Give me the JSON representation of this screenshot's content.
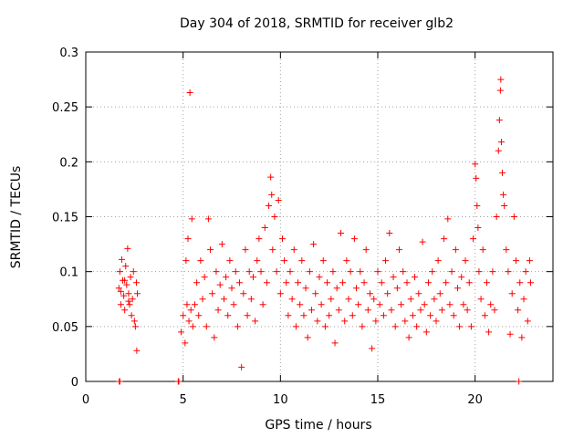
{
  "chart_data": {
    "type": "scatter",
    "title": "Day 304 of 2018, SRMTID for receiver glb2",
    "xlabel": "GPS time / hours",
    "ylabel": "SRMTID / TECUs",
    "xlim": [
      0,
      24
    ],
    "ylim": [
      0,
      0.3
    ],
    "grid": true,
    "marker": "+",
    "x_ticks": [
      0,
      5,
      10,
      15,
      20
    ],
    "x_tick_labels": [
      "0",
      "5",
      "10",
      "15",
      "20"
    ],
    "y_ticks": [
      0,
      0.05,
      0.1,
      0.15,
      0.2,
      0.25,
      0.3
    ],
    "y_tick_labels": [
      "0",
      "0.05",
      "0.1",
      "0.15",
      "0.2",
      "0.25",
      "0.3"
    ],
    "colors": {
      "series": "#ff0000",
      "grid": "#a0a0a0",
      "axis": "#000000"
    },
    "series": [
      {
        "name": "SRMTID",
        "points": [
          [
            1.72,
            0.0
          ],
          [
            1.75,
            0.0
          ],
          [
            4.75,
            0.0
          ],
          [
            4.78,
            0.0
          ],
          [
            22.25,
            0.0
          ],
          [
            1.7,
            0.085
          ],
          [
            1.75,
            0.1
          ],
          [
            1.8,
            0.07
          ],
          [
            1.85,
            0.111
          ],
          [
            1.9,
            0.092
          ],
          [
            1.95,
            0.078
          ],
          [
            2.0,
            0.065
          ],
          [
            2.05,
            0.105
          ],
          [
            2.1,
            0.088
          ],
          [
            2.15,
            0.121
          ],
          [
            2.2,
            0.08
          ],
          [
            2.25,
            0.07
          ],
          [
            2.3,
            0.095
          ],
          [
            2.35,
            0.06
          ],
          [
            2.4,
            0.075
          ],
          [
            2.45,
            0.1
          ],
          [
            2.5,
            0.055
          ],
          [
            2.55,
            0.05
          ],
          [
            2.6,
            0.09
          ],
          [
            2.62,
            0.028
          ],
          [
            2.65,
            0.08
          ],
          [
            1.8,
            0.082
          ],
          [
            2.0,
            0.092
          ],
          [
            2.2,
            0.073
          ],
          [
            4.9,
            0.045
          ],
          [
            5.0,
            0.06
          ],
          [
            5.1,
            0.035
          ],
          [
            5.15,
            0.11
          ],
          [
            5.2,
            0.07
          ],
          [
            5.25,
            0.13
          ],
          [
            5.3,
            0.055
          ],
          [
            5.35,
            0.263
          ],
          [
            5.4,
            0.065
          ],
          [
            5.45,
            0.148
          ],
          [
            5.5,
            0.05
          ],
          [
            5.6,
            0.07
          ],
          [
            5.7,
            0.09
          ],
          [
            5.8,
            0.06
          ],
          [
            5.9,
            0.11
          ],
          [
            6.0,
            0.075
          ],
          [
            6.1,
            0.095
          ],
          [
            6.2,
            0.05
          ],
          [
            6.3,
            0.148
          ],
          [
            6.4,
            0.12
          ],
          [
            6.5,
            0.08
          ],
          [
            6.6,
            0.04
          ],
          [
            6.7,
            0.1
          ],
          [
            6.8,
            0.065
          ],
          [
            6.9,
            0.088
          ],
          [
            7.0,
            0.125
          ],
          [
            7.1,
            0.075
          ],
          [
            7.2,
            0.095
          ],
          [
            7.3,
            0.06
          ],
          [
            7.4,
            0.11
          ],
          [
            7.5,
            0.085
          ],
          [
            7.6,
            0.07
          ],
          [
            7.7,
            0.1
          ],
          [
            7.8,
            0.05
          ],
          [
            7.9,
            0.09
          ],
          [
            8.0,
            0.013
          ],
          [
            8.1,
            0.08
          ],
          [
            8.2,
            0.12
          ],
          [
            8.3,
            0.06
          ],
          [
            8.4,
            0.1
          ],
          [
            8.5,
            0.075
          ],
          [
            8.6,
            0.095
          ],
          [
            8.7,
            0.055
          ],
          [
            8.8,
            0.11
          ],
          [
            8.9,
            0.13
          ],
          [
            9.0,
            0.1
          ],
          [
            9.1,
            0.07
          ],
          [
            9.2,
            0.14
          ],
          [
            9.3,
            0.09
          ],
          [
            9.4,
            0.16
          ],
          [
            9.5,
            0.186
          ],
          [
            9.55,
            0.17
          ],
          [
            9.6,
            0.12
          ],
          [
            9.7,
            0.15
          ],
          [
            9.8,
            0.1
          ],
          [
            9.9,
            0.165
          ],
          [
            10.0,
            0.08
          ],
          [
            10.1,
            0.13
          ],
          [
            10.2,
            0.11
          ],
          [
            10.3,
            0.09
          ],
          [
            10.4,
            0.06
          ],
          [
            10.5,
            0.1
          ],
          [
            10.6,
            0.075
          ],
          [
            10.7,
            0.12
          ],
          [
            10.8,
            0.05
          ],
          [
            10.9,
            0.09
          ],
          [
            11.0,
            0.07
          ],
          [
            11.1,
            0.11
          ],
          [
            11.2,
            0.06
          ],
          [
            11.3,
            0.085
          ],
          [
            11.4,
            0.04
          ],
          [
            11.5,
            0.1
          ],
          [
            11.6,
            0.065
          ],
          [
            11.7,
            0.125
          ],
          [
            11.8,
            0.08
          ],
          [
            11.9,
            0.055
          ],
          [
            12.0,
            0.095
          ],
          [
            12.1,
            0.07
          ],
          [
            12.2,
            0.11
          ],
          [
            12.3,
            0.05
          ],
          [
            12.4,
            0.09
          ],
          [
            12.5,
            0.06
          ],
          [
            12.6,
            0.075
          ],
          [
            12.7,
            0.1
          ],
          [
            12.8,
            0.035
          ],
          [
            12.9,
            0.085
          ],
          [
            13.0,
            0.065
          ],
          [
            13.1,
            0.135
          ],
          [
            13.2,
            0.09
          ],
          [
            13.3,
            0.055
          ],
          [
            13.4,
            0.11
          ],
          [
            13.5,
            0.075
          ],
          [
            13.6,
            0.1
          ],
          [
            13.7,
            0.06
          ],
          [
            13.8,
            0.13
          ],
          [
            13.9,
            0.085
          ],
          [
            14.0,
            0.07
          ],
          [
            14.1,
            0.1
          ],
          [
            14.2,
            0.05
          ],
          [
            14.3,
            0.09
          ],
          [
            14.4,
            0.12
          ],
          [
            14.5,
            0.065
          ],
          [
            14.6,
            0.08
          ],
          [
            14.7,
            0.03
          ],
          [
            14.8,
            0.075
          ],
          [
            14.9,
            0.055
          ],
          [
            15.0,
            0.1
          ],
          [
            15.1,
            0.07
          ],
          [
            15.2,
            0.09
          ],
          [
            15.3,
            0.06
          ],
          [
            15.4,
            0.11
          ],
          [
            15.5,
            0.08
          ],
          [
            15.6,
            0.135
          ],
          [
            15.7,
            0.065
          ],
          [
            15.8,
            0.095
          ],
          [
            15.9,
            0.05
          ],
          [
            16.0,
            0.085
          ],
          [
            16.1,
            0.12
          ],
          [
            16.2,
            0.07
          ],
          [
            16.3,
            0.1
          ],
          [
            16.4,
            0.055
          ],
          [
            16.5,
            0.09
          ],
          [
            16.6,
            0.04
          ],
          [
            16.7,
            0.075
          ],
          [
            16.8,
            0.06
          ],
          [
            16.9,
            0.095
          ],
          [
            17.0,
            0.05
          ],
          [
            17.1,
            0.08
          ],
          [
            17.2,
            0.065
          ],
          [
            17.3,
            0.127
          ],
          [
            17.4,
            0.07
          ],
          [
            17.5,
            0.045
          ],
          [
            17.6,
            0.09
          ],
          [
            17.7,
            0.06
          ],
          [
            17.8,
            0.1
          ],
          [
            17.9,
            0.075
          ],
          [
            18.0,
            0.055
          ],
          [
            18.1,
            0.11
          ],
          [
            18.2,
            0.08
          ],
          [
            18.3,
            0.065
          ],
          [
            18.4,
            0.13
          ],
          [
            18.5,
            0.09
          ],
          [
            18.6,
            0.148
          ],
          [
            18.7,
            0.07
          ],
          [
            18.8,
            0.1
          ],
          [
            18.9,
            0.06
          ],
          [
            19.0,
            0.12
          ],
          [
            19.1,
            0.085
          ],
          [
            19.2,
            0.05
          ],
          [
            19.3,
            0.095
          ],
          [
            19.4,
            0.07
          ],
          [
            19.5,
            0.11
          ],
          [
            19.6,
            0.065
          ],
          [
            19.7,
            0.09
          ],
          [
            19.8,
            0.05
          ],
          [
            19.9,
            0.13
          ],
          [
            20.0,
            0.198
          ],
          [
            20.05,
            0.185
          ],
          [
            20.1,
            0.16
          ],
          [
            20.15,
            0.14
          ],
          [
            20.2,
            0.1
          ],
          [
            20.3,
            0.075
          ],
          [
            20.4,
            0.12
          ],
          [
            20.5,
            0.06
          ],
          [
            20.6,
            0.09
          ],
          [
            20.7,
            0.045
          ],
          [
            20.8,
            0.07
          ],
          [
            20.9,
            0.1
          ],
          [
            21.0,
            0.065
          ],
          [
            21.1,
            0.15
          ],
          [
            21.2,
            0.21
          ],
          [
            21.25,
            0.238
          ],
          [
            21.3,
            0.265
          ],
          [
            21.32,
            0.275
          ],
          [
            21.35,
            0.218
          ],
          [
            21.4,
            0.19
          ],
          [
            21.45,
            0.17
          ],
          [
            21.5,
            0.16
          ],
          [
            21.6,
            0.12
          ],
          [
            21.7,
            0.1
          ],
          [
            21.8,
            0.043
          ],
          [
            21.9,
            0.08
          ],
          [
            22.0,
            0.15
          ],
          [
            22.1,
            0.11
          ],
          [
            22.2,
            0.065
          ],
          [
            22.3,
            0.09
          ],
          [
            22.4,
            0.04
          ],
          [
            22.5,
            0.075
          ],
          [
            22.6,
            0.1
          ],
          [
            22.7,
            0.055
          ],
          [
            22.8,
            0.11
          ],
          [
            22.85,
            0.09
          ]
        ]
      }
    ]
  }
}
